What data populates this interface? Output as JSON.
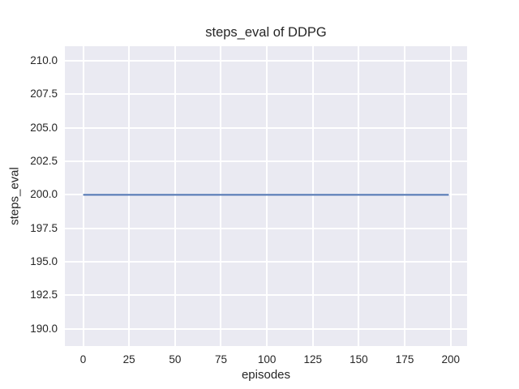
{
  "chart_data": {
    "type": "line",
    "title": "steps_eval of DDPG",
    "xlabel": "episodes",
    "ylabel": "steps_eval",
    "xlim": [
      -9.95,
      208.95
    ],
    "ylim": [
      188.7,
      211.1
    ],
    "xticks": [
      0,
      25,
      50,
      75,
      100,
      125,
      150,
      175,
      200
    ],
    "xtick_labels": [
      "0",
      "25",
      "50",
      "75",
      "100",
      "125",
      "150",
      "175",
      "200"
    ],
    "yticks": [
      190,
      192.5,
      195,
      197.5,
      200,
      202.5,
      205,
      207.5,
      210
    ],
    "ytick_labels": [
      "190.0",
      "192.5",
      "195.0",
      "197.5",
      "200.0",
      "202.5",
      "205.0",
      "207.5",
      "210.0"
    ],
    "grid": true,
    "legend_position": "none",
    "plot_bg_color": "#eaeaf2",
    "grid_color": "#ffffff",
    "figure_bg_color": "#ffffff",
    "text_color": "#262626",
    "series": [
      {
        "name": "steps_eval",
        "color": "#4c72b0",
        "x": [
          0,
          199
        ],
        "y": [
          200,
          200
        ]
      }
    ]
  }
}
